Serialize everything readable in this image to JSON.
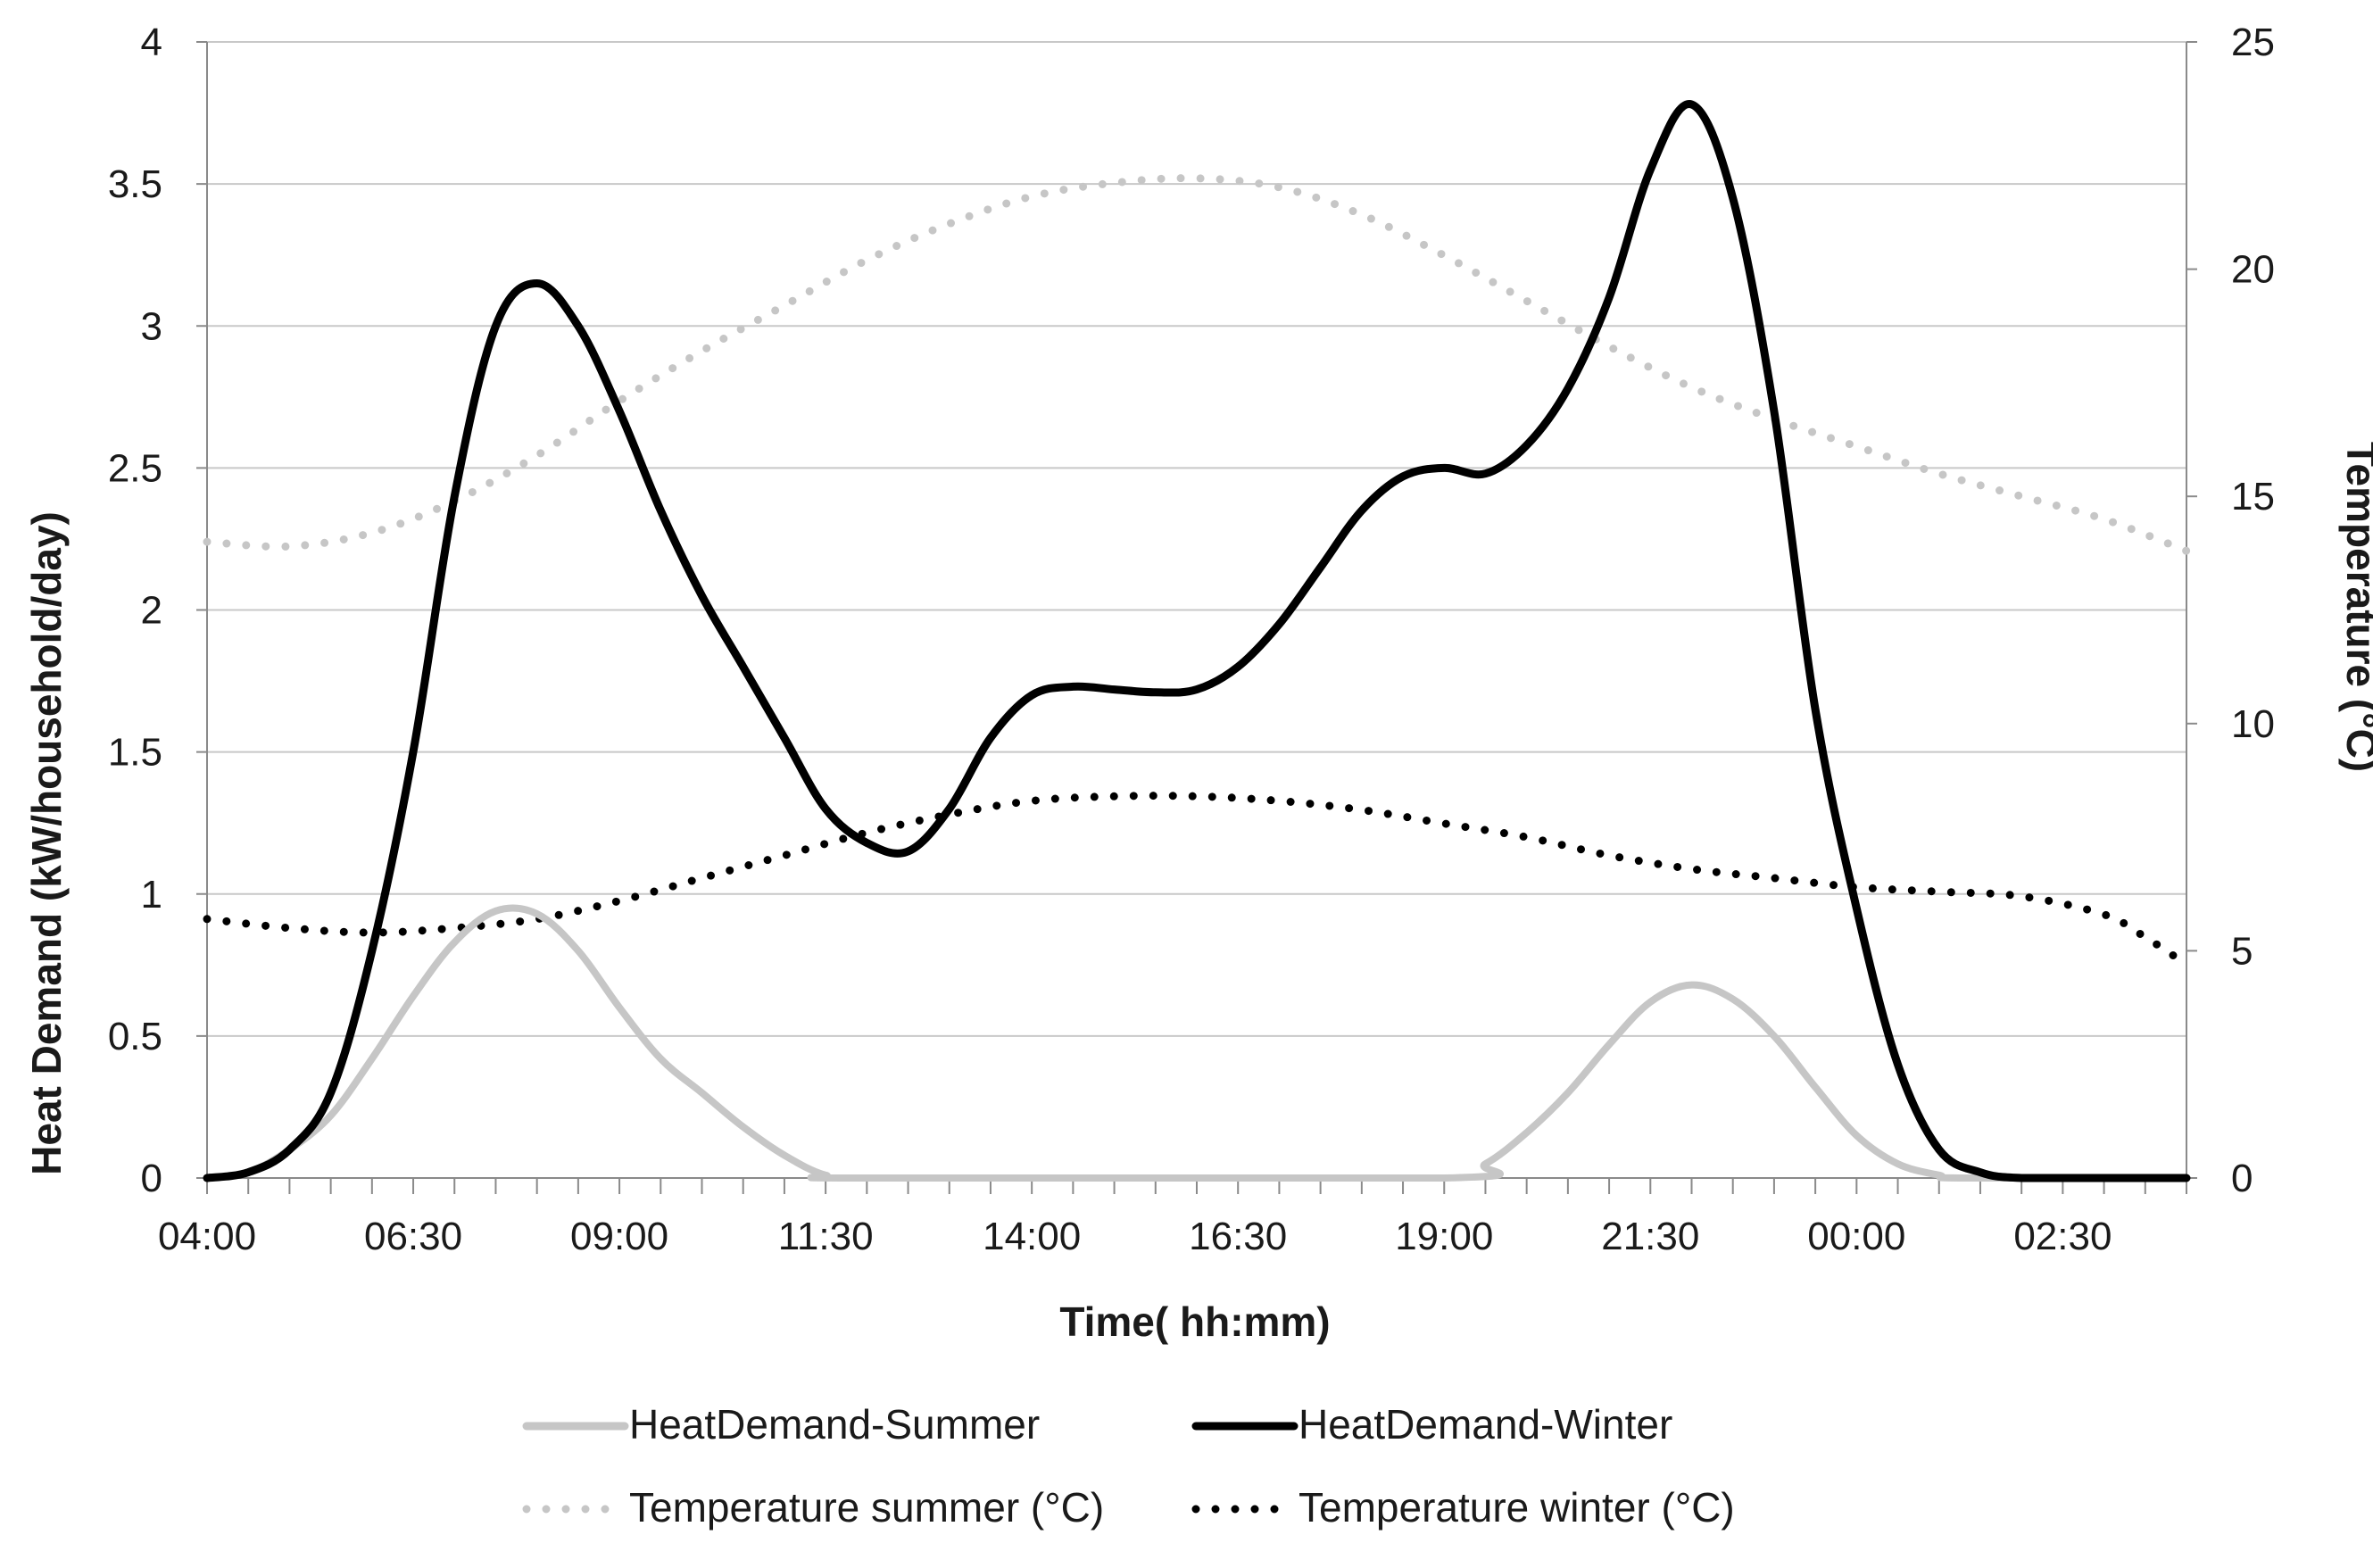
{
  "chart_data": {
    "type": "line",
    "xlabel": "Time( hh:mm)",
    "ylabel": "Heat Demand (kW/household/day)",
    "y2label": "Temperature (°C)",
    "x_domain_hours": [
      4,
      28
    ],
    "x_ticks": [
      {
        "label": "04:00",
        "hour": 4
      },
      {
        "label": "06:30",
        "hour": 6.5
      },
      {
        "label": "09:00",
        "hour": 9
      },
      {
        "label": "11:30",
        "hour": 11.5
      },
      {
        "label": "14:00",
        "hour": 14
      },
      {
        "label": "16:30",
        "hour": 16.5
      },
      {
        "label": "19:00",
        "hour": 19
      },
      {
        "label": "21:30",
        "hour": 21.5
      },
      {
        "label": "00:00",
        "hour": 24
      },
      {
        "label": "02:30",
        "hour": 26.5
      }
    ],
    "ylim": [
      0,
      4
    ],
    "y_ticks": [
      "0",
      "0.5",
      "1",
      "1.5",
      "2",
      "2.5",
      "3",
      "3.5",
      "4"
    ],
    "y2lim": [
      0,
      25
    ],
    "y2_ticks": [
      "0",
      "5",
      "10",
      "15",
      "20",
      "25"
    ],
    "grid": true,
    "legend_position": "bottom",
    "series": [
      {
        "name": "HeatDemand-Summer",
        "axis": "left",
        "style": "solid",
        "color": "#c6c6c6",
        "x": [
          4,
          4.5,
          5,
          5.5,
          6,
          6.5,
          7,
          7.5,
          8,
          8.5,
          9,
          9.5,
          10,
          10.5,
          11,
          11.5,
          12,
          19,
          19.5,
          20,
          20.5,
          21,
          21.5,
          22,
          22.5,
          23,
          23.5,
          24,
          24.5,
          25,
          25.3,
          28
        ],
        "y": [
          0,
          0.02,
          0.1,
          0.22,
          0.42,
          0.64,
          0.83,
          0.94,
          0.93,
          0.8,
          0.6,
          0.42,
          0.3,
          0.18,
          0.08,
          0.01,
          0,
          0,
          0.05,
          0.16,
          0.3,
          0.47,
          0.62,
          0.68,
          0.63,
          0.5,
          0.32,
          0.15,
          0.05,
          0.01,
          0,
          0
        ]
      },
      {
        "name": "HeatDemand-Winter",
        "axis": "left",
        "style": "solid",
        "color": "#000000",
        "x": [
          4,
          4.5,
          5,
          5.5,
          6,
          6.5,
          7,
          7.5,
          8,
          8.5,
          9,
          9.5,
          10,
          10.5,
          11,
          11.5,
          12,
          12.5,
          13,
          13.5,
          14,
          14.5,
          15,
          15.5,
          16,
          16.5,
          17,
          17.5,
          18,
          18.5,
          19,
          19.5,
          20,
          20.5,
          21,
          21.5,
          22,
          22.5,
          23,
          23.5,
          24,
          24.5,
          25,
          25.5,
          26,
          27,
          28
        ],
        "y": [
          0,
          0.02,
          0.1,
          0.3,
          0.8,
          1.5,
          2.4,
          3.0,
          3.15,
          3.0,
          2.7,
          2.35,
          2.05,
          1.8,
          1.55,
          1.3,
          1.18,
          1.15,
          1.3,
          1.55,
          1.7,
          1.73,
          1.72,
          1.71,
          1.72,
          1.8,
          1.95,
          2.15,
          2.35,
          2.47,
          2.5,
          2.48,
          2.58,
          2.78,
          3.1,
          3.55,
          3.78,
          3.45,
          2.7,
          1.65,
          0.95,
          0.4,
          0.1,
          0.02,
          0,
          0,
          0
        ]
      },
      {
        "name": "Temperature summer (°C)",
        "axis": "right",
        "style": "dotted",
        "color": "#c6c6c6",
        "x": [
          4,
          5,
          6,
          7,
          8,
          9,
          10,
          11,
          12,
          13,
          14,
          15,
          16,
          17,
          18,
          19,
          20,
          21,
          22,
          23,
          24,
          25,
          26,
          27,
          28
        ],
        "y": [
          14,
          13.9,
          14.2,
          14.9,
          15.9,
          17.1,
          18.2,
          19.2,
          20.2,
          21,
          21.6,
          21.9,
          22,
          21.8,
          21.2,
          20.3,
          19.3,
          18.3,
          17.4,
          16.7,
          16.1,
          15.5,
          15,
          14.5,
          13.8
        ]
      },
      {
        "name": "Temperature winter (°C)",
        "axis": "right",
        "style": "dotted",
        "color": "#000000",
        "x": [
          4,
          5,
          6,
          7,
          8,
          9,
          10,
          11,
          12,
          13,
          14,
          15,
          16,
          17,
          18,
          19,
          20,
          21,
          22,
          23,
          24,
          25,
          26,
          27,
          27.5,
          28
        ],
        "y": [
          5.7,
          5.5,
          5.4,
          5.5,
          5.7,
          6.1,
          6.6,
          7.1,
          7.6,
          8,
          8.3,
          8.4,
          8.4,
          8.3,
          8.1,
          7.8,
          7.5,
          7.1,
          6.8,
          6.6,
          6.4,
          6.3,
          6.2,
          5.8,
          5.3,
          4.7
        ]
      }
    ]
  }
}
